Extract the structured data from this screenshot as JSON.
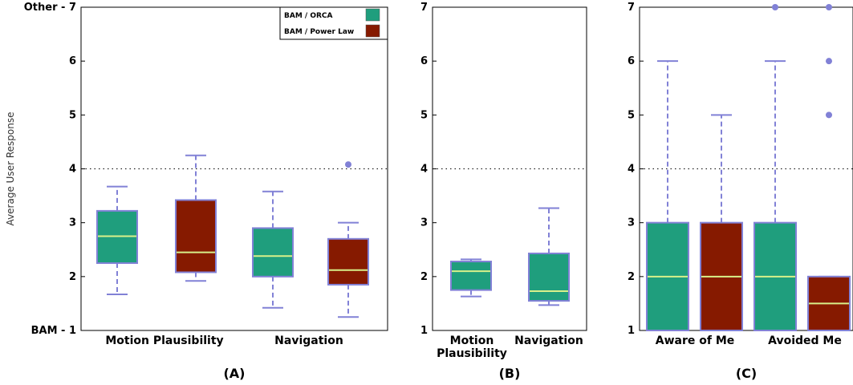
{
  "colors": {
    "series_1": "#1f9e7d",
    "series_2": "#861a00",
    "median": "#d8f08a",
    "whisker": "#8181d6",
    "outlier": "#8181d6",
    "reference_line": "#000000"
  },
  "legend": {
    "placement": "top-right",
    "entries": [
      "BAM / ORCA",
      "BAM / Power Law"
    ]
  },
  "chart_data": [
    {
      "type": "box",
      "panel_label": "(A)",
      "ylabel": "Average User Response",
      "ylim": [
        1,
        7
      ],
      "yticks": [
        {
          "value": 1,
          "label": "BAM - 1"
        },
        {
          "value": 2,
          "label": "2"
        },
        {
          "value": 3,
          "label": "3"
        },
        {
          "value": 4,
          "label": "4"
        },
        {
          "value": 5,
          "label": "5"
        },
        {
          "value": 6,
          "label": "6"
        },
        {
          "value": 7,
          "label": "Other - 7"
        }
      ],
      "reference_line": 4,
      "categories": [
        {
          "label": "Motion Plausibility",
          "label_lines": [
            "Motion Plausibility"
          ]
        },
        {
          "label": "Navigation",
          "label_lines": [
            "Navigation"
          ]
        }
      ],
      "boxes": [
        {
          "category": 0,
          "series": 0,
          "whislo": 1.67,
          "q1": 2.25,
          "med": 2.75,
          "q3": 3.22,
          "whishi": 3.67,
          "fliers": []
        },
        {
          "category": 0,
          "series": 1,
          "whislo": 1.92,
          "q1": 2.08,
          "med": 2.45,
          "q3": 3.42,
          "whishi": 4.25,
          "fliers": []
        },
        {
          "category": 1,
          "series": 0,
          "whislo": 1.42,
          "q1": 2.0,
          "med": 2.38,
          "q3": 2.9,
          "whishi": 3.58,
          "fliers": []
        },
        {
          "category": 1,
          "series": 1,
          "whislo": 1.25,
          "q1": 1.85,
          "med": 2.12,
          "q3": 2.7,
          "whishi": 3.0,
          "fliers": [
            4.08
          ]
        }
      ]
    },
    {
      "type": "box",
      "panel_label": "(B)",
      "ylim": [
        1,
        7
      ],
      "yticks": [
        {
          "value": 1,
          "label": "1"
        },
        {
          "value": 2,
          "label": "2"
        },
        {
          "value": 3,
          "label": "3"
        },
        {
          "value": 4,
          "label": "4"
        },
        {
          "value": 5,
          "label": "5"
        },
        {
          "value": 6,
          "label": "6"
        },
        {
          "value": 7,
          "label": "7"
        }
      ],
      "reference_line": 4,
      "categories": [
        {
          "label": "Motion Plausibility",
          "label_lines": [
            "Motion",
            "Plausibility"
          ]
        },
        {
          "label": "Navigation",
          "label_lines": [
            "Navigation"
          ]
        }
      ],
      "boxes": [
        {
          "category": 0,
          "series": 0,
          "whislo": 1.63,
          "q1": 1.75,
          "med": 2.1,
          "q3": 2.28,
          "whishi": 2.32,
          "fliers": []
        },
        {
          "category": 1,
          "series": 0,
          "whislo": 1.47,
          "q1": 1.55,
          "med": 1.73,
          "q3": 2.43,
          "whishi": 3.27,
          "fliers": []
        }
      ]
    },
    {
      "type": "box",
      "panel_label": "(C)",
      "ylim": [
        1,
        7
      ],
      "yticks": [
        {
          "value": 1,
          "label": "1"
        },
        {
          "value": 2,
          "label": "2"
        },
        {
          "value": 3,
          "label": "3"
        },
        {
          "value": 4,
          "label": "4"
        },
        {
          "value": 5,
          "label": "5"
        },
        {
          "value": 6,
          "label": "6"
        },
        {
          "value": 7,
          "label": "7"
        }
      ],
      "reference_line": 4,
      "categories": [
        {
          "label": "Aware of Me",
          "label_lines": [
            "Aware of Me"
          ]
        },
        {
          "label": "Avoided Me",
          "label_lines": [
            "Avoided Me"
          ]
        }
      ],
      "boxes": [
        {
          "category": 0,
          "series": 0,
          "whislo": 1.0,
          "q1": 1.0,
          "med": 2.0,
          "q3": 3.0,
          "whishi": 6.0,
          "fliers": []
        },
        {
          "category": 0,
          "series": 1,
          "whislo": 1.0,
          "q1": 1.0,
          "med": 2.0,
          "q3": 3.0,
          "whishi": 5.0,
          "fliers": []
        },
        {
          "category": 1,
          "series": 0,
          "whislo": 1.0,
          "q1": 1.0,
          "med": 2.0,
          "q3": 3.0,
          "whishi": 6.0,
          "fliers": [
            7.0
          ]
        },
        {
          "category": 1,
          "series": 1,
          "whislo": 1.0,
          "q1": 1.0,
          "med": 1.5,
          "q3": 2.0,
          "whishi": 2.0,
          "fliers": [
            5.0,
            6.0,
            7.0
          ]
        }
      ]
    }
  ]
}
